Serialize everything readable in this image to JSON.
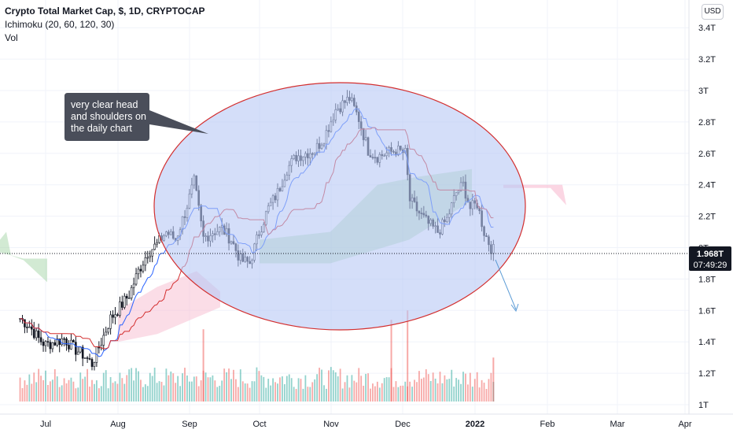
{
  "header": {
    "title": "Crypto Total Market Cap, $, 1D, CRYPTOCAP",
    "indicator": "Ichimoku (20, 60, 120, 30)",
    "volume_label": "Vol",
    "currency_button": "USD"
  },
  "annotation": {
    "lines": [
      "very clear head",
      "and shoulders on",
      "the daily chart"
    ]
  },
  "price_tag": {
    "value": "1.968T",
    "countdown": "07:49:29"
  },
  "colors": {
    "up": "#26a69a",
    "down": "#ef5350",
    "candle": "#131722",
    "ellipse_fill": "#b8c8f5",
    "ellipse_stroke": "#d32f2f",
    "callout_bg": "#4a4e5a",
    "tenkan": "#2962ff",
    "kijun": "#d32f2f",
    "cloud_green": "#a5d6a7",
    "cloud_red": "#f8bbd0",
    "arrow": "#5b9bd5",
    "price_tag_bg": "#131722"
  },
  "chart_data": {
    "type": "candlestick",
    "title": "Crypto Total Market Cap, $, 1D, CRYPTOCAP",
    "y_unit": "T",
    "ylim": [
      0.96,
      3.5
    ],
    "y_ticks": [
      "1T",
      "1.2T",
      "1.4T",
      "1.6T",
      "1.8T",
      "2T",
      "2.2T",
      "2.4T",
      "2.6T",
      "2.8T",
      "3T",
      "3.2T",
      "3.4T"
    ],
    "x_ticks": [
      "Jul",
      "Aug",
      "Sep",
      "Oct",
      "Nov",
      "Dec",
      "2022",
      "Feb",
      "Mar",
      "Apr"
    ],
    "last_price": 1.968,
    "close_path": [
      [
        "Jun 20",
        1.55
      ],
      [
        "Jun 24",
        1.5
      ],
      [
        "Jun 28",
        1.42
      ],
      [
        "Jul 1",
        1.38
      ],
      [
        "Jul 5",
        1.4
      ],
      [
        "Jul 9",
        1.42
      ],
      [
        "Jul 13",
        1.36
      ],
      [
        "Jul 17",
        1.32
      ],
      [
        "Jul 21",
        1.26
      ],
      [
        "Jul 25",
        1.4
      ],
      [
        "Jul 29",
        1.55
      ],
      [
        "Aug 2",
        1.62
      ],
      [
        "Aug 6",
        1.7
      ],
      [
        "Aug 10",
        1.85
      ],
      [
        "Aug 14",
        1.97
      ],
      [
        "Aug 18",
        2.02
      ],
      [
        "Aug 22",
        2.1
      ],
      [
        "Aug 26",
        2.05
      ],
      [
        "Aug 30",
        2.22
      ],
      [
        "Sep 3",
        2.42
      ],
      [
        "Sep 7",
        2.06
      ],
      [
        "Sep 11",
        2.1
      ],
      [
        "Sep 15",
        2.12
      ],
      [
        "Sep 19",
        2.05
      ],
      [
        "Sep 23",
        1.92
      ],
      [
        "Sep 27",
        1.9
      ],
      [
        "Oct 1",
        2.1
      ],
      [
        "Oct 5",
        2.25
      ],
      [
        "Oct 9",
        2.35
      ],
      [
        "Oct 13",
        2.5
      ],
      [
        "Oct 17",
        2.58
      ],
      [
        "Oct 21",
        2.6
      ],
      [
        "Oct 25",
        2.62
      ],
      [
        "Oct 29",
        2.7
      ],
      [
        "Nov 3",
        2.88
      ],
      [
        "Nov 9",
        2.95
      ],
      [
        "Nov 13",
        2.82
      ],
      [
        "Nov 17",
        2.62
      ],
      [
        "Nov 21",
        2.58
      ],
      [
        "Nov 25",
        2.6
      ],
      [
        "Nov 29",
        2.62
      ],
      [
        "Dec 3",
        2.6
      ],
      [
        "Dec 5",
        2.3
      ],
      [
        "Dec 9",
        2.22
      ],
      [
        "Dec 13",
        2.15
      ],
      [
        "Dec 17",
        2.1
      ],
      [
        "Dec 21",
        2.18
      ],
      [
        "Dec 25",
        2.35
      ],
      [
        "Dec 28",
        2.4
      ],
      [
        "Dec 31",
        2.25
      ],
      [
        "Jan 3",
        2.28
      ],
      [
        "Jan 6",
        2.1
      ],
      [
        "Jan 9",
        2.0
      ],
      [
        "Jan 11",
        1.968
      ]
    ],
    "volume_spikes": [
      [
        "Sep 7",
        1.48
      ],
      [
        "Nov 27",
        1.54
      ],
      [
        "Dec 4",
        1.6
      ],
      [
        "Jan 10",
        1.3
      ]
    ],
    "projection": {
      "from": [
        "Jan 11",
        1.95
      ],
      "to": [
        "Jan 22",
        1.58
      ]
    }
  }
}
